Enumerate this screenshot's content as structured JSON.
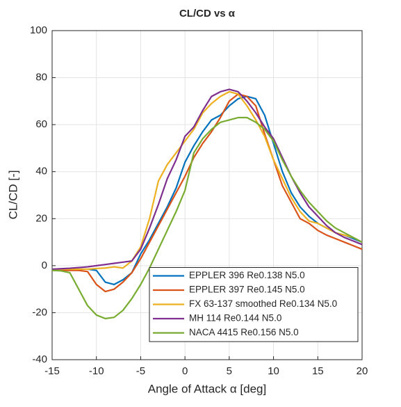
{
  "chart_data": {
    "type": "line",
    "title": "CL/CD vs α",
    "xlabel": "Angle of Attack α [deg]",
    "ylabel": "CL/CD [-]",
    "x": [
      -15,
      -14,
      -13,
      -12,
      -11,
      -10,
      -9,
      -8,
      -7,
      -6,
      -5,
      -4,
      -3,
      -2,
      -1,
      0,
      1,
      2,
      3,
      4,
      5,
      6,
      7,
      8,
      9,
      10,
      11,
      12,
      13,
      14,
      15,
      16,
      17,
      18,
      19,
      20
    ],
    "series": [
      {
        "name": "EPPLER 396 Re0.138 N5.0",
        "color": "#0072bd",
        "values": [
          -1.5,
          -1.5,
          -1.5,
          -1.5,
          -1.5,
          -2,
          -7,
          -8,
          -6,
          -3,
          5,
          11,
          18,
          25,
          33,
          44,
          51,
          57,
          62,
          64,
          68,
          71,
          72,
          71,
          64,
          52,
          40,
          31,
          25,
          21,
          18,
          16,
          14,
          13,
          11.5,
          10
        ]
      },
      {
        "name": "EPPLER 397 Re0.145 N5.0",
        "color": "#d95319",
        "values": [
          -2,
          -2,
          -2,
          -2,
          -2.5,
          -8,
          -11,
          -10,
          -7,
          -3,
          3,
          10,
          17,
          24,
          31,
          38,
          46,
          52,
          57,
          63,
          70,
          73,
          72,
          68,
          56,
          45,
          34,
          27,
          20,
          18,
          15,
          13,
          11.5,
          10,
          8.5,
          7
        ]
      },
      {
        "name": "FX 63-137 smoothed Re0.134 N5.0",
        "color": "#edb120",
        "values": [
          -1.5,
          -1.5,
          -1.5,
          -1.5,
          -1.5,
          -1.2,
          -1,
          -0.5,
          -1,
          2,
          8,
          20,
          36,
          43,
          48,
          53,
          58,
          65,
          69,
          72,
          74,
          73,
          68,
          62,
          55,
          45,
          37,
          29,
          23,
          19,
          18,
          16,
          14,
          13,
          12,
          10
        ]
      },
      {
        "name": "MH 114 Re0.144 N5.0",
        "color": "#7e2f8e",
        "values": [
          -1.5,
          -1.3,
          -1.1,
          -0.8,
          -0.5,
          0,
          0.5,
          1,
          1.5,
          2,
          7,
          16,
          26,
          37,
          45,
          55,
          59,
          66,
          72,
          74,
          75,
          74,
          70,
          65,
          59,
          54,
          46,
          38,
          31,
          25,
          21,
          17,
          14,
          12,
          10.5,
          9
        ]
      },
      {
        "name": "NACA 4415 Re0.156 N5.0",
        "color": "#77ac30",
        "values": [
          -2,
          -2.2,
          -3,
          -10,
          -17,
          -21,
          -22.5,
          -22,
          -19,
          -14,
          -8,
          -1,
          7,
          15,
          23,
          32,
          48,
          54,
          58,
          61,
          62,
          63,
          63,
          61,
          58,
          53,
          45,
          38,
          32,
          27,
          23,
          19,
          16,
          14,
          12,
          10
        ]
      }
    ],
    "xlim": [
      -15,
      20
    ],
    "xticks": [
      -15,
      -10,
      -5,
      0,
      5,
      10,
      15,
      20
    ],
    "ylim": [
      -40,
      100
    ],
    "yticks": [
      -40,
      -20,
      0,
      20,
      40,
      60,
      80,
      100
    ],
    "grid": true,
    "legend": "south-east"
  }
}
